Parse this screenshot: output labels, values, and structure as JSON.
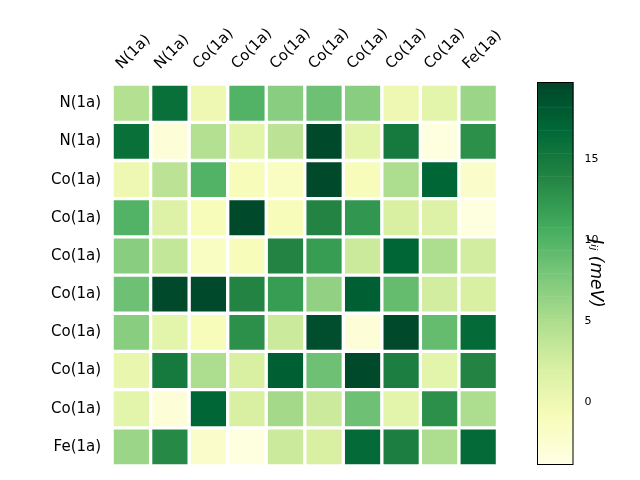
{
  "chart_data": {
    "type": "heatmap",
    "x_labels": [
      "N(1a)",
      "N(1a)",
      "Co(1a)",
      "Co(1a)",
      "Co(1a)",
      "Co(1a)",
      "Co(1a)",
      "Co(1a)",
      "Co(1a)",
      "Fe(1a)"
    ],
    "y_labels": [
      "N(1a)",
      "N(1a)",
      "Co(1a)",
      "Co(1a)",
      "Co(1a)",
      "Co(1a)",
      "Co(1a)",
      "Co(1a)",
      "Co(1a)",
      "Fe(1a)"
    ],
    "cells": [
      [
        4.5,
        16,
        0,
        10,
        7,
        8.5,
        7,
        0,
        1,
        6
      ],
      [
        16,
        -3,
        4.5,
        1,
        4,
        19.5,
        1,
        15,
        -3.5,
        13
      ],
      [
        0,
        4,
        10,
        -1,
        -1.5,
        19.5,
        -1,
        5,
        17,
        -2
      ],
      [
        10,
        1.5,
        -1,
        19.5,
        -1,
        14,
        12.5,
        2,
        1.5,
        -3.5
      ],
      [
        7,
        3.5,
        -1.5,
        -1,
        14,
        12,
        3,
        17,
        5,
        2.5
      ],
      [
        8.5,
        19.5,
        19.5,
        14,
        12,
        6.5,
        17.5,
        9,
        2.5,
        2
      ],
      [
        7,
        1,
        -1,
        13,
        3,
        19,
        -3,
        19.5,
        9,
        16.5
      ],
      [
        0.5,
        15,
        5,
        2,
        17.5,
        8.5,
        19.5,
        14.5,
        1,
        14
      ],
      [
        1,
        -3,
        17,
        2,
        5.5,
        3,
        8.5,
        1,
        13,
        5
      ],
      [
        6,
        13.5,
        -2,
        -3.5,
        3,
        2,
        16.5,
        14.5,
        5,
        16.5
      ]
    ],
    "color": "YlGn",
    "colorbar": {
      "label": "Jᵢⱼ (meV)",
      "lim": [
        -3.9,
        19.8
      ],
      "ticks": [
        0,
        5,
        10,
        15
      ]
    }
  }
}
